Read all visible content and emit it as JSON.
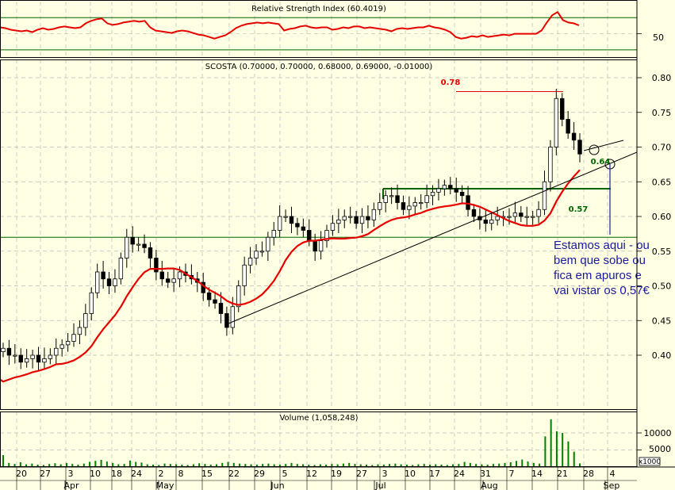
{
  "colors": {
    "background": "#ffffe3",
    "grid": "#b9b9b9",
    "up_candle": "#ffffff",
    "down_candle": "#000000",
    "ma_line": "#e60000",
    "rsi_line": "#e60000",
    "volume_bar": "#008000",
    "level_078": "#e60000",
    "level_064": "#006400",
    "level_057": "#006400",
    "annotation": "#1a1aa0"
  },
  "chart_data": [
    {
      "type": "line",
      "panel": "rsi",
      "title": "Relative Strength Index (60.4019)",
      "y_tick_labels": [
        "50"
      ],
      "reference_lines": [
        70,
        30
      ],
      "ylim": [
        20,
        90
      ],
      "values": [
        58,
        57,
        55,
        54,
        53,
        54,
        52,
        55,
        57,
        55,
        56,
        58,
        59,
        58,
        57,
        58,
        63,
        66,
        68,
        69,
        63,
        61,
        62,
        64,
        65,
        66,
        65,
        66,
        58,
        54,
        53,
        52,
        51,
        53,
        54,
        53,
        51,
        49,
        48,
        46,
        44,
        46,
        48,
        52,
        57,
        60,
        62,
        63,
        64,
        63,
        64,
        63,
        62,
        54,
        56,
        57,
        59,
        60,
        58,
        57,
        58,
        58,
        55,
        56,
        58,
        57,
        59,
        59,
        57,
        58,
        57,
        56,
        55,
        53,
        56,
        57,
        56,
        57,
        58,
        58,
        60,
        58,
        57,
        55,
        52,
        46,
        44,
        45,
        47,
        46,
        48,
        46,
        47,
        48,
        49,
        48,
        50,
        50,
        50,
        50,
        50,
        54,
        64,
        73,
        77,
        67,
        64,
        63,
        60.4
      ],
      "x_count": 109
    },
    {
      "type": "candlestick",
      "panel": "price",
      "title": "SCOSTA (0.70000, 0.70000, 0.68000, 0.69000, -0.01000)",
      "y_tick_labels": [
        "0.80",
        "0.75",
        "0.70",
        "0.65",
        "0.60",
        "0.55",
        "0.50",
        "0.45",
        "0.40"
      ],
      "ylim": [
        0.35,
        0.82
      ],
      "levels": [
        {
          "label": "0.78",
          "value": 0.78
        },
        {
          "label": "0.64",
          "value": 0.64
        },
        {
          "label": "0.57",
          "value": 0.57
        }
      ],
      "annotation": "Estamos aqui - ou bem que sobe ou fica em apuros e vai vistar os 0,57€",
      "close": [
        0.41,
        0.4,
        0.4,
        0.39,
        0.395,
        0.4,
        0.39,
        0.395,
        0.4,
        0.41,
        0.415,
        0.42,
        0.43,
        0.44,
        0.46,
        0.49,
        0.52,
        0.51,
        0.5,
        0.51,
        0.54,
        0.57,
        0.56,
        0.56,
        0.555,
        0.54,
        0.52,
        0.51,
        0.505,
        0.51,
        0.52,
        0.515,
        0.51,
        0.505,
        0.49,
        0.48,
        0.475,
        0.46,
        0.44,
        0.47,
        0.5,
        0.53,
        0.54,
        0.55,
        0.55,
        0.57,
        0.58,
        0.6,
        0.6,
        0.59,
        0.585,
        0.58,
        0.565,
        0.55,
        0.565,
        0.58,
        0.59,
        0.595,
        0.6,
        0.6,
        0.59,
        0.6,
        0.595,
        0.61,
        0.62,
        0.63,
        0.63,
        0.62,
        0.61,
        0.615,
        0.62,
        0.62,
        0.63,
        0.635,
        0.64,
        0.645,
        0.64,
        0.635,
        0.63,
        0.61,
        0.6,
        0.595,
        0.59,
        0.595,
        0.6,
        0.6,
        0.6,
        0.605,
        0.6,
        0.6,
        0.6,
        0.61,
        0.65,
        0.7,
        0.77,
        0.74,
        0.72,
        0.71,
        0.69
      ],
      "x_count": 99
    },
    {
      "type": "bar",
      "panel": "volume",
      "title": "Volume (1,058,248)",
      "y_tick_labels": [
        "10000",
        "5000",
        "x1000"
      ],
      "ylim": [
        0,
        14000
      ],
      "values": [
        3500,
        1200,
        900,
        1400,
        800,
        1000,
        700,
        600,
        900,
        1100,
        800,
        1200,
        900,
        700,
        1000,
        1500,
        1800,
        2100,
        1600,
        1200,
        800,
        900,
        1900,
        1500,
        1300,
        800,
        700,
        600,
        1000,
        900,
        800,
        700,
        600,
        800,
        1100,
        900,
        700,
        800,
        1200,
        1500,
        1200,
        1000,
        900,
        800,
        700,
        900,
        1000,
        800,
        700,
        900,
        1200,
        900,
        800,
        700,
        600,
        800,
        700,
        900,
        800,
        1000,
        1200,
        900,
        800,
        700,
        600,
        800,
        700,
        900,
        1000,
        800,
        700,
        600,
        800,
        900,
        700,
        800,
        700,
        600,
        800,
        900,
        1500,
        1200,
        900,
        800,
        700,
        900,
        1000,
        1200,
        1400,
        1800,
        2200,
        1600,
        1200,
        1000,
        9000,
        14000,
        10500,
        10000,
        7500,
        4500,
        1058
      ],
      "x_count": 101
    }
  ],
  "x_axis": {
    "dates": [
      "20",
      "27",
      "3",
      "10",
      "18",
      "24",
      "2",
      "8",
      "15",
      "22",
      "29",
      "5",
      "12",
      "19",
      "27",
      "3",
      "10",
      "17",
      "24",
      "31",
      "7",
      "14",
      "21",
      "28",
      "4"
    ],
    "months": [
      "Apr",
      "May",
      "Jun",
      "Jul",
      "Aug",
      "Sep"
    ]
  }
}
